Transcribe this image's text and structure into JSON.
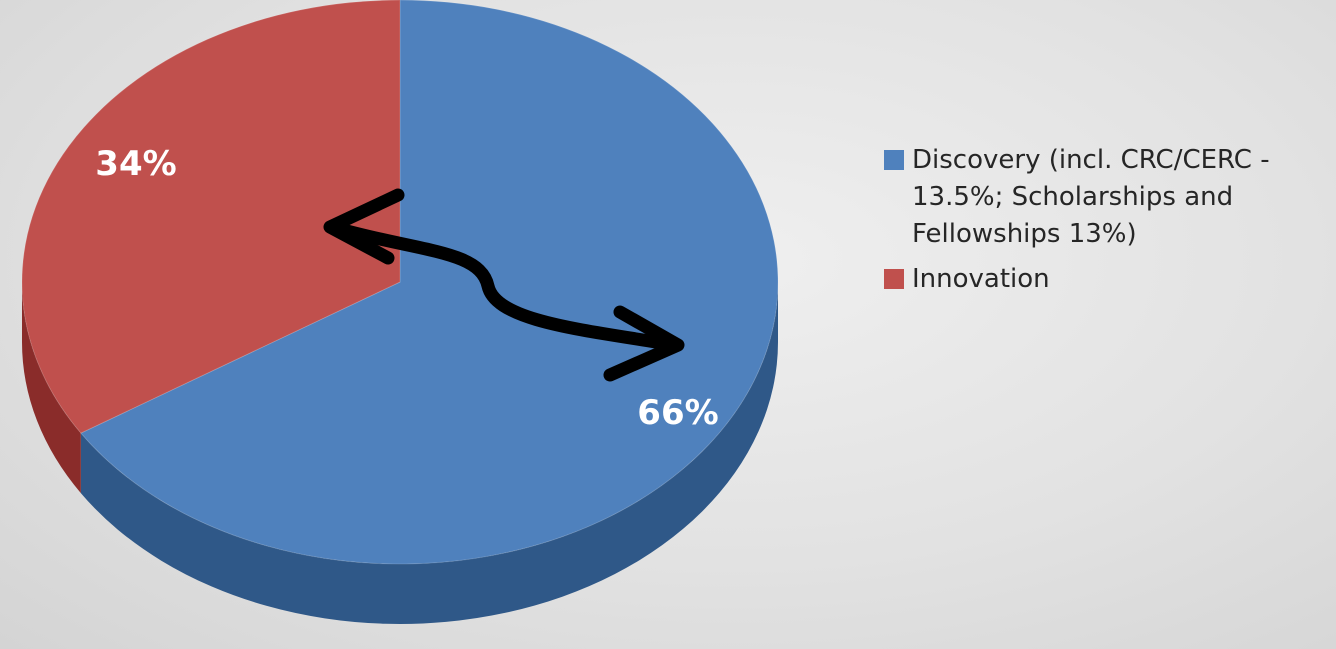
{
  "chart_data": {
    "type": "pie",
    "style": "3d-tilted",
    "start": "12 o'clock",
    "slices": [
      {
        "label": "Discovery (incl. CRC/CERC -\n13.5%; Scholarships and\nFellowships 13%)",
        "value": 66,
        "display": "66%",
        "color": "#4f81bd",
        "side_color": "#2f5888"
      },
      {
        "label": "Innovation",
        "value": 34,
        "display": "34%",
        "color": "#c0504d",
        "side_color": "#8a2c2a"
      }
    ],
    "legend_position": "right",
    "annotation": "double-headed curved arrow between the two slices"
  }
}
